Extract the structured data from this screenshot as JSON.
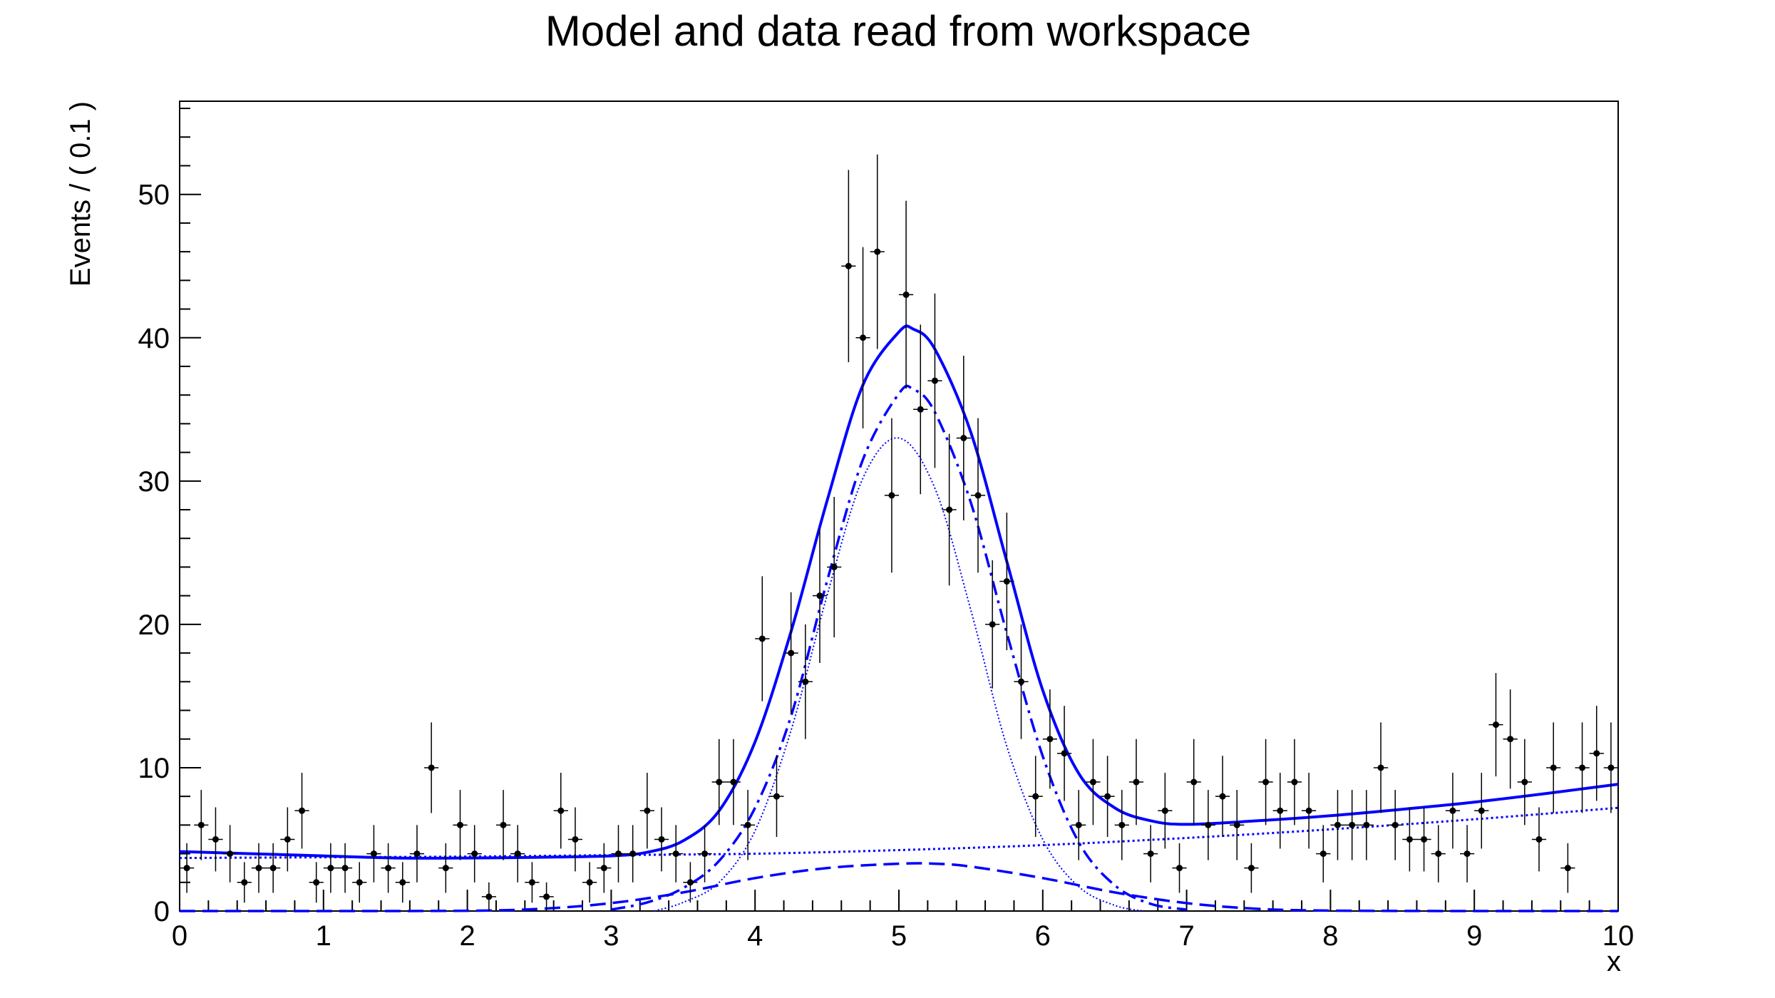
{
  "chart_data": {
    "type": "scatter",
    "title": "Model and data read from workspace",
    "xlabel": "x",
    "ylabel": "Events / ( 0.1 )",
    "xlim": [
      0,
      10
    ],
    "ylim": [
      0,
      56.5
    ],
    "x_ticks": [
      0,
      1,
      2,
      3,
      4,
      5,
      6,
      7,
      8,
      9,
      10
    ],
    "y_ticks": [
      0,
      10,
      20,
      30,
      40,
      50
    ],
    "grid": false,
    "legend": "none",
    "colors": {
      "data": "#000000",
      "model": "#0000ff"
    },
    "bin_width": 0.1,
    "data_points": {
      "x": [
        0.05,
        0.15,
        0.25,
        0.35,
        0.45,
        0.55,
        0.65,
        0.75,
        0.85,
        0.95,
        1.05,
        1.15,
        1.25,
        1.35,
        1.45,
        1.55,
        1.65,
        1.75,
        1.85,
        1.95,
        2.05,
        2.15,
        2.25,
        2.35,
        2.45,
        2.55,
        2.65,
        2.75,
        2.85,
        2.95,
        3.05,
        3.15,
        3.25,
        3.35,
        3.45,
        3.55,
        3.65,
        3.75,
        3.85,
        3.95,
        4.05,
        4.15,
        4.25,
        4.35,
        4.45,
        4.55,
        4.65,
        4.75,
        4.85,
        4.95,
        5.05,
        5.15,
        5.25,
        5.35,
        5.45,
        5.55,
        5.65,
        5.75,
        5.85,
        5.95,
        6.05,
        6.15,
        6.25,
        6.35,
        6.45,
        6.55,
        6.65,
        6.75,
        6.85,
        6.95,
        7.05,
        7.15,
        7.25,
        7.35,
        7.45,
        7.55,
        7.65,
        7.75,
        7.85,
        7.95,
        8.05,
        8.15,
        8.25,
        8.35,
        8.45,
        8.55,
        8.65,
        8.75,
        8.85,
        8.95,
        9.05,
        9.15,
        9.25,
        9.35,
        9.45,
        9.55,
        9.65,
        9.75,
        9.85,
        9.95
      ],
      "y": [
        3,
        6,
        5,
        4,
        2,
        3,
        3,
        5,
        7,
        2,
        3,
        3,
        2,
        4,
        3,
        2,
        4,
        10,
        3,
        6,
        4,
        1,
        6,
        4,
        2,
        1,
        7,
        5,
        2,
        3,
        4,
        4,
        7,
        5,
        4,
        2,
        4,
        9,
        9,
        6,
        19,
        8,
        18,
        16,
        22,
        24,
        45,
        40,
        46,
        29,
        43,
        35,
        37,
        28,
        33,
        29,
        20,
        23,
        16,
        8,
        12,
        11,
        6,
        9,
        8,
        6,
        9,
        4,
        7,
        3,
        9,
        6,
        8,
        6,
        3,
        9,
        7,
        9,
        7,
        4,
        6,
        6,
        6,
        10,
        6,
        5,
        5,
        4,
        7,
        4,
        7,
        13,
        12,
        9,
        5,
        10,
        3,
        10,
        11,
        10
      ]
    },
    "series": [
      {
        "style": "solid",
        "x": [
          0,
          0.5,
          1,
          1.5,
          2,
          2.5,
          3,
          3.25,
          3.5,
          3.75,
          4,
          4.25,
          4.5,
          4.75,
          5,
          5.1,
          5.25,
          5.5,
          5.75,
          6,
          6.25,
          6.5,
          6.75,
          7,
          7.5,
          8,
          8.5,
          9,
          9.5,
          10
        ],
        "y": [
          4.15,
          4.0,
          3.85,
          3.7,
          3.7,
          3.75,
          3.85,
          4.1,
          4.9,
          7.0,
          11.8,
          19.5,
          28.6,
          36.7,
          40.4,
          40.6,
          39.2,
          33.4,
          24.4,
          15.4,
          9.6,
          7.2,
          6.3,
          6.05,
          6.3,
          6.65,
          7.1,
          7.6,
          8.2,
          8.85
        ]
      },
      {
        "style": "dash-dot",
        "x": [
          3,
          3.25,
          3.5,
          3.75,
          4,
          4.25,
          4.5,
          4.75,
          5,
          5.1,
          5.25,
          5.5,
          5.75,
          6,
          6.25,
          6.5,
          6.75,
          7
        ],
        "y": [
          0.1,
          0.6,
          1.6,
          3.5,
          7.2,
          13.6,
          23.0,
          31.5,
          36.1,
          36.4,
          34.8,
          28.5,
          19.4,
          10.8,
          4.8,
          1.8,
          0.5,
          0.1
        ]
      },
      {
        "style": "dotted",
        "x": [
          0,
          1,
          2,
          3,
          4,
          5,
          6,
          7,
          8,
          9,
          10
        ],
        "y": [
          3.7,
          3.75,
          3.8,
          3.9,
          4.0,
          4.25,
          4.6,
          5.1,
          5.7,
          6.4,
          7.2
        ]
      },
      {
        "style": "dotted-thin",
        "x": [
          3.3,
          3.5,
          3.75,
          4,
          4.25,
          4.5,
          4.75,
          5,
          5.25,
          5.5,
          5.75,
          6,
          6.25,
          6.5,
          6.7
        ],
        "y": [
          0,
          0.6,
          2.0,
          5.6,
          12.6,
          22.0,
          30.2,
          33.0,
          29.5,
          21.0,
          11.5,
          5.0,
          1.7,
          0.4,
          0
        ]
      },
      {
        "style": "dashed",
        "x": [
          0,
          1,
          2,
          2.5,
          3,
          3.5,
          4,
          4.5,
          5,
          5.25,
          5.5,
          6,
          6.5,
          7,
          7.5,
          8,
          9,
          10
        ],
        "y": [
          0,
          0,
          0.02,
          0.15,
          0.55,
          1.3,
          2.3,
          3.0,
          3.3,
          3.3,
          3.1,
          2.3,
          1.3,
          0.55,
          0.15,
          0.03,
          0,
          0
        ]
      }
    ]
  }
}
